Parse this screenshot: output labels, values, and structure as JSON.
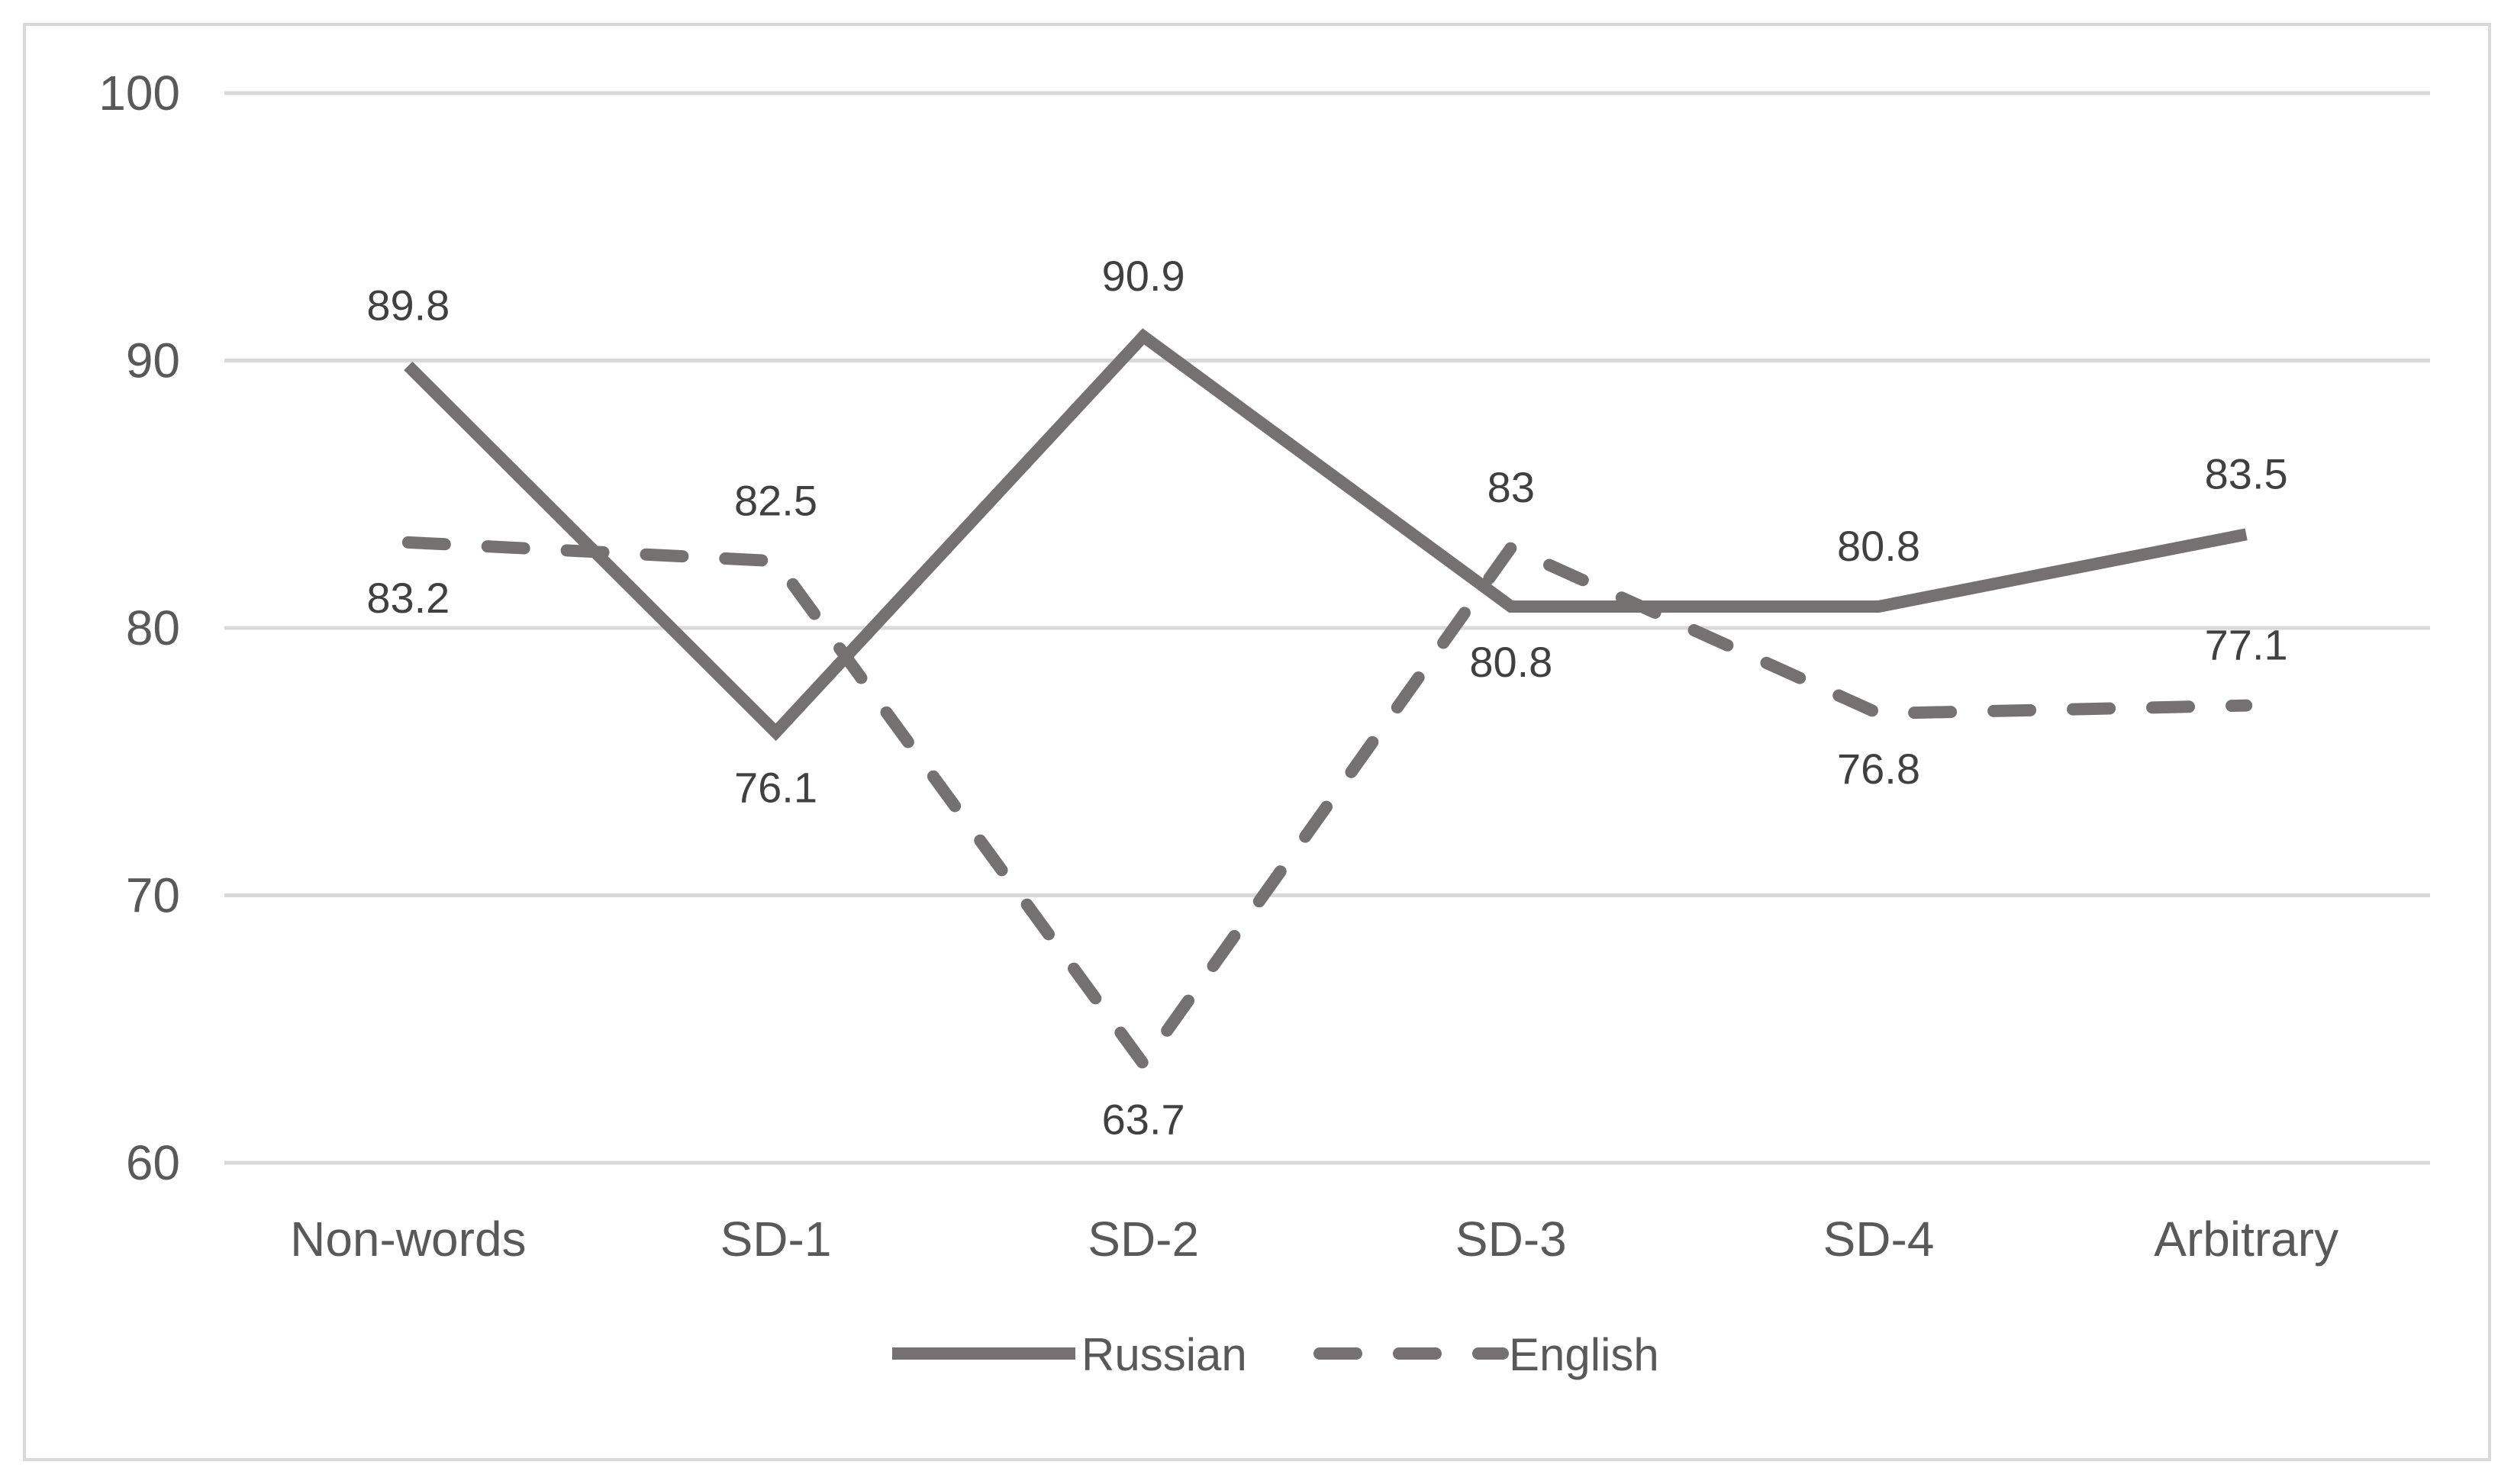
{
  "chart_data": {
    "type": "line",
    "title": "",
    "xlabel": "",
    "ylabel": "",
    "categories": [
      "Non-words",
      "SD-1",
      "SD-2",
      "SD-3",
      "SD-4",
      "Arbitrary"
    ],
    "ylim": [
      60,
      100
    ],
    "yticks": [
      "60",
      "70",
      "80",
      "90",
      "100"
    ],
    "grid": true,
    "legend_position": "bottom",
    "series": [
      {
        "name": "Russian",
        "style": "solid",
        "color": "#767171",
        "values": [
          89.8,
          76.1,
          90.9,
          80.8,
          80.8,
          83.5
        ],
        "labels": [
          "89.8",
          "76.1",
          "90.9",
          "80.8",
          "80.8",
          "83.5"
        ],
        "label_side": [
          "above",
          "below",
          "above",
          "below",
          "above",
          "above"
        ]
      },
      {
        "name": "English",
        "style": "dashed",
        "color": "#767171",
        "values": [
          83.2,
          82.5,
          63.7,
          83,
          76.8,
          77.1
        ],
        "labels": [
          "83.2",
          "82.5",
          "63.7",
          "83",
          "76.8",
          "77.1"
        ],
        "label_side": [
          "below",
          "above",
          "below",
          "above",
          "below",
          "above"
        ]
      }
    ]
  },
  "colors": {
    "grid": "#d9d9d9",
    "border": "#d9d9d9",
    "text": "#595959",
    "series": "#767171"
  }
}
